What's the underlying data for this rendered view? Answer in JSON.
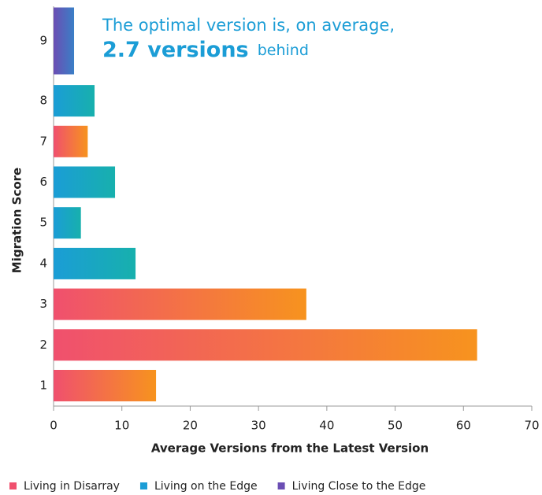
{
  "chart_data": {
    "type": "barh",
    "annotation": {
      "line1": "The optimal version is, on average,",
      "highlight": "2.7 versions",
      "tail": "behind"
    },
    "categories": [
      "1",
      "2",
      "3",
      "4",
      "5",
      "6",
      "7",
      "8",
      "9"
    ],
    "series": [
      {
        "name": "Living in Disarray",
        "color": "#f0506e",
        "color_end": "#f7931e",
        "values": [
          15,
          62,
          37,
          null,
          null,
          null,
          5,
          null,
          null
        ]
      },
      {
        "name": "Living on the Edge",
        "color": "#1b9dd6",
        "color_end": "#17b0ad",
        "values": [
          null,
          null,
          null,
          12,
          4,
          9,
          null,
          6,
          null
        ]
      },
      {
        "name": "Living Close to the Edge",
        "color": "#6b4eb4",
        "color_end": "#3a7fc6",
        "values": [
          null,
          null,
          null,
          null,
          null,
          null,
          null,
          null,
          3
        ]
      }
    ],
    "xlabel": "Average Versions from the Latest Version",
    "ylabel": "Migration Score",
    "xlim": [
      0,
      70
    ],
    "xticks": [
      0,
      10,
      20,
      30,
      40,
      50,
      60,
      70
    ],
    "legend": "bottom"
  }
}
